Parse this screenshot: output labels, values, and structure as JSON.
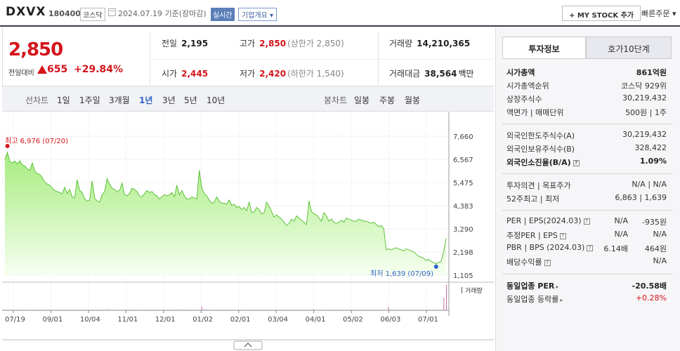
{
  "header": {
    "stock_name": "DXVX",
    "stock_code": "180400",
    "market": "코스닥",
    "base_date": "2024.07.19  기준(장마감)",
    "realtime_label": "실시간",
    "company_overview": "기업개요 ▾",
    "mystock_button": "+ MY STOCK 추가",
    "quick_order": "빠른주문 ▾"
  },
  "price": {
    "current": "2,850",
    "change_label": "전일대비",
    "change": "655",
    "change_pct": "+29.84%",
    "prev_close_label": "전일",
    "prev_close": "2,195",
    "high_label": "고가",
    "high": "2,850",
    "upper_limit": "(상한가 2,850)",
    "volume_label": "거래량",
    "volume": "14,210,365",
    "open_label": "시가",
    "open": "2,445",
    "low_label": "저가",
    "low": "2,420",
    "lower_limit": "(하한가 1,540)",
    "trade_value_label": "거래대금",
    "trade_value": "38,564",
    "trade_value_unit": "백만"
  },
  "tabs": {
    "line_chart": "선차트",
    "periods": [
      "1일",
      "1주일",
      "3개월",
      "1년",
      "3년",
      "5년",
      "10년"
    ],
    "active_period": "1년",
    "candle_chart": "봉차트",
    "candle_periods": [
      "일봉",
      "주봉",
      "월봉"
    ]
  },
  "chart_data": {
    "type": "area",
    "ylim": [
      1105,
      7660
    ],
    "y_ticks": [
      "7,660",
      "6,567",
      "5,475",
      "4,383",
      "3,290",
      "2,198",
      "1,105"
    ],
    "x_ticks": [
      "07/19",
      "09/01",
      "10/04",
      "11/01",
      "12/01",
      "01/02",
      "02/01",
      "03/04",
      "04/01",
      "05/02",
      "06/03",
      "07/01"
    ],
    "max_label": "최고 6,976 (07/20)",
    "min_label": "최저 1,639 (07/09)",
    "volume_label": "거래량",
    "series": [
      {
        "values": [
          6550,
          6900,
          6450,
          6400,
          6480,
          6350,
          6500,
          6300,
          6250,
          6120,
          6050,
          6400,
          6000,
          5900,
          5850,
          5700,
          5500,
          5400,
          5350,
          5200,
          5100,
          5050,
          5000,
          4950,
          5250,
          4950,
          5150,
          4800,
          4750,
          5600,
          5100,
          5000,
          4700,
          4600,
          4650,
          5550,
          4750,
          4600,
          4550,
          4900,
          5050,
          5650,
          5400,
          5200,
          5150,
          5050,
          5100,
          5450,
          4900,
          4850,
          4950,
          5200,
          5150,
          5050,
          4850,
          4800,
          4950,
          5100,
          5000,
          5050,
          4900,
          4850,
          4700,
          4800,
          4900,
          4850,
          4900,
          5000,
          4800,
          5350,
          4900,
          5100,
          4850,
          4700,
          4700,
          4800,
          4750,
          4700,
          6050,
          5200,
          4950,
          4850,
          4650,
          4500,
          4550,
          4800,
          4600,
          4500,
          4500,
          4450,
          4650,
          4400,
          4450,
          4300,
          4350,
          4200,
          4300,
          4150,
          4550,
          4050,
          4100,
          4300,
          4200,
          4000,
          4050,
          4550,
          4350,
          4100,
          3850,
          3950,
          3850,
          3750,
          3600,
          3450,
          3550,
          3750,
          3650,
          3900,
          3800,
          3700,
          3600,
          3500,
          4600,
          4100,
          4000,
          3950,
          3800,
          3650,
          4050,
          3900,
          3650,
          3750,
          3600,
          3550,
          3600,
          3700,
          3600,
          3800,
          3750,
          3700,
          3650,
          3650,
          3750,
          3700,
          3650,
          3650,
          3600,
          3550,
          3600,
          3500,
          3400,
          3450,
          3300,
          2300,
          2350,
          2300,
          2350,
          2400,
          2350,
          2300,
          2250,
          2350,
          2300,
          2250,
          2200,
          2100,
          2000,
          1950,
          1900,
          1800,
          1850,
          1750,
          1700,
          1639,
          1700,
          1750,
          2195,
          2850
        ]
      }
    ],
    "volume": [
      1,
      2,
      1,
      1,
      1,
      1,
      2,
      1,
      1,
      1,
      1,
      1,
      1,
      1,
      1,
      1,
      1,
      1,
      1,
      1,
      1,
      1,
      1,
      1,
      1,
      1,
      1,
      1,
      1,
      2,
      1,
      1,
      1,
      1,
      1,
      2,
      1,
      1,
      1,
      1,
      1,
      4,
      1,
      1,
      1,
      1,
      1,
      2,
      1,
      1,
      1,
      2,
      1,
      1,
      1,
      1,
      1,
      1,
      1,
      1,
      1,
      1,
      1,
      1,
      1,
      1,
      1,
      1,
      1,
      3,
      1,
      1,
      1,
      1,
      1,
      1,
      1,
      1,
      9,
      3,
      2,
      1,
      1,
      1,
      1,
      1,
      1,
      1,
      1,
      1,
      1,
      1,
      1,
      1,
      1,
      1,
      1,
      1,
      2,
      1,
      1,
      1,
      1,
      1,
      1,
      2,
      1,
      1,
      1,
      1,
      1,
      1,
      1,
      1,
      1,
      1,
      1,
      1,
      1,
      1,
      1,
      1,
      4,
      2,
      1,
      1,
      1,
      1,
      1,
      1,
      1,
      1,
      1,
      1,
      1,
      1,
      1,
      1,
      1,
      1,
      1,
      1,
      1,
      1,
      1,
      1,
      1,
      1,
      1,
      1,
      1,
      1,
      8,
      3,
      2,
      1,
      1,
      1,
      1,
      1,
      1,
      1,
      1,
      1,
      1,
      1,
      1,
      1,
      1,
      1,
      1,
      1,
      1,
      2,
      30,
      60
    ]
  },
  "panel": {
    "tab_invest": "투자정보",
    "tab_quote": "호가10단계",
    "market_cap_label": "시가총액",
    "market_cap": "861억원",
    "market_cap_rank_label": "시가총액순위",
    "market_cap_rank": "코스닥 929위",
    "shares_label": "상장주식수",
    "shares": "30,219,432",
    "par_label": "액면가 | 매매단위",
    "par": "500원 | 1주",
    "foreign_limit_label": "외국인한도주식수(A)",
    "foreign_limit": "30,219,432",
    "foreign_hold_label": "외국인보유주식수(B)",
    "foreign_hold": "328,422",
    "foreign_ratio_label": "외국인소진율(B/A)",
    "foreign_ratio": "1.09%",
    "opinion_label": "투자의견 | 목표주가",
    "opinion": "N/A | N/A",
    "week52_label": "52주최고 | 최저",
    "week52": "6,863 | 1,639",
    "per_label": "PER | EPS(2024.03)",
    "per": "N/A",
    "eps": "-935원",
    "est_per_label": "추정PER | EPS",
    "est_per": "N/A",
    "est_eps": "N/A",
    "pbr_label": "PBR | BPS (2024.03)",
    "pbr": "6.14배",
    "bps": "464원",
    "dividend_label": "배당수익률",
    "dividend": "N/A",
    "industry_per_label": "동일업종 PER",
    "industry_per": "-20.58배",
    "industry_change_label": "동일업종 등락률",
    "industry_change": "+0.28%"
  }
}
